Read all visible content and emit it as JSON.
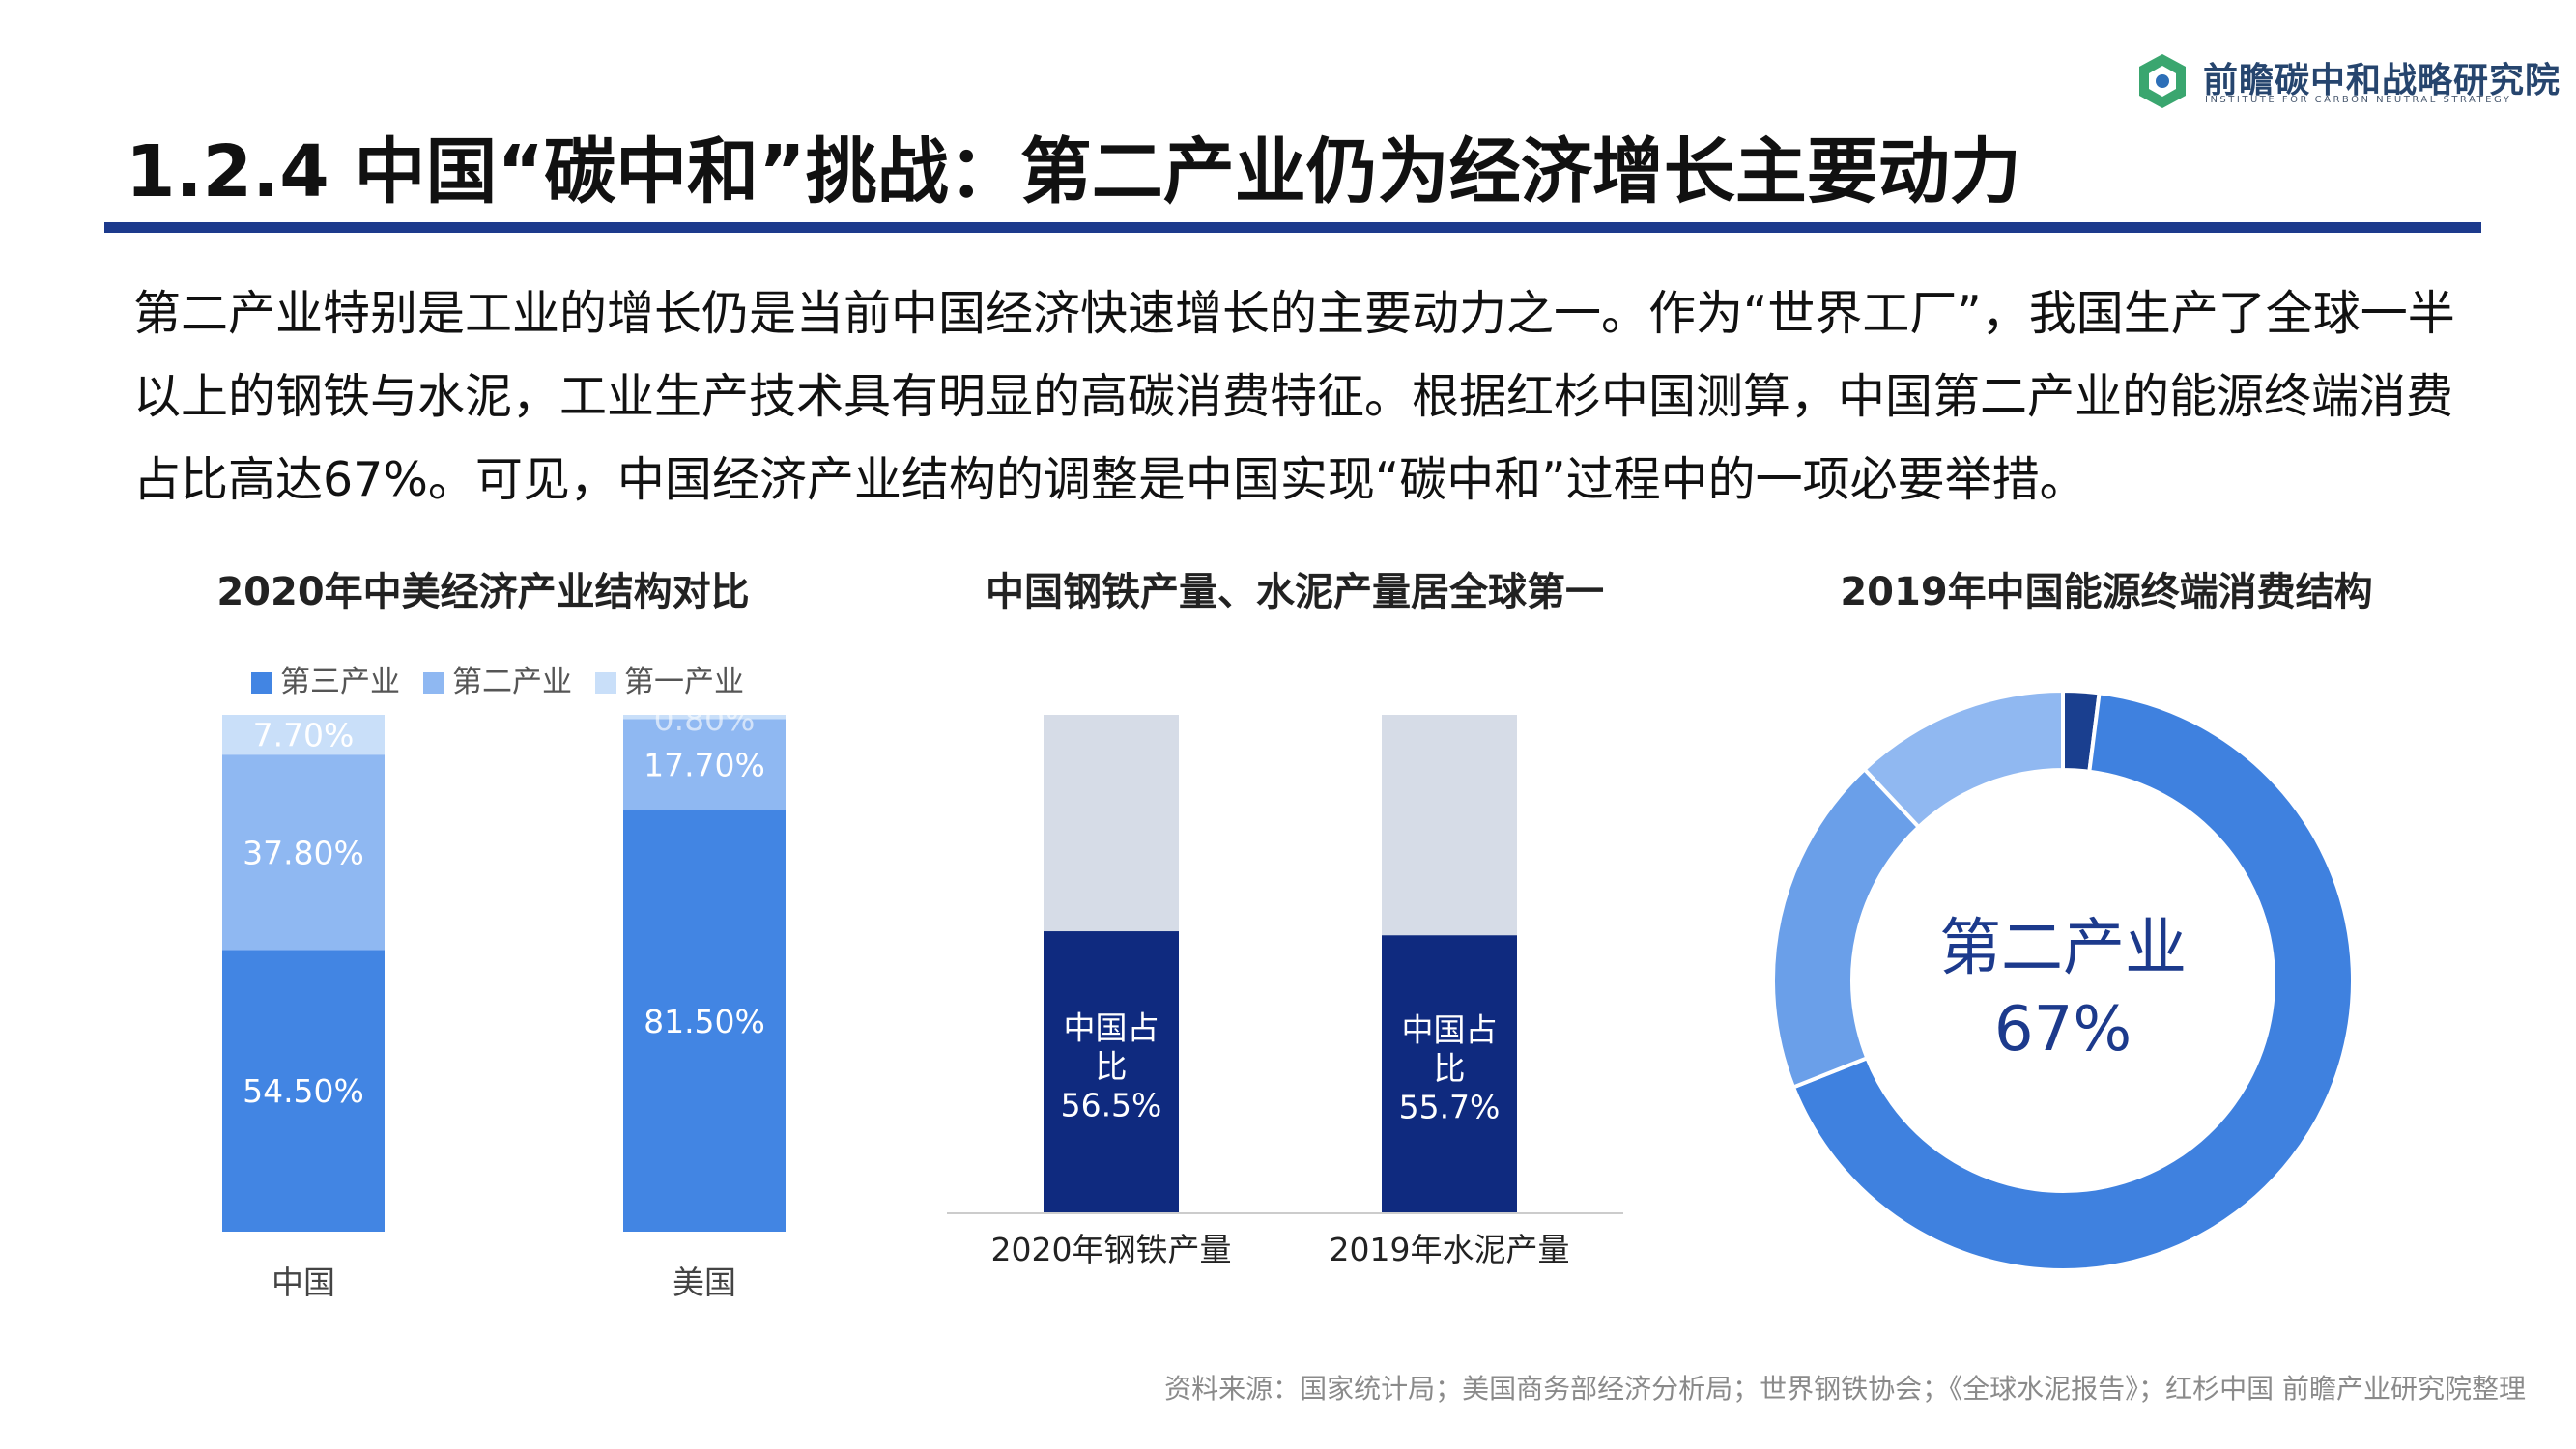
{
  "header": {
    "logo_cn": "前瞻碳中和战略研究院",
    "logo_en": "INSTITUTE FOR CARBON NEUTRAL STRATEGY",
    "title": "1.2.4 中国“碳中和”挑战：第二产业仍为经济增长主要动力"
  },
  "intro_text": "第二产业特别是工业的增长仍是当前中国经济快速增长的主要动力之一。作为“世界工厂”，我国生产了全球一半以上的钢铁与水泥，工业生产技术具有明显的高碳消费特征。根据红杉中国测算，中国第二产业的能源终端消费占比高达67%。可见，中国经济产业结构的调整是中国实现“碳中和”过程中的一项必要举措。",
  "chart_data": [
    {
      "type": "bar",
      "stacked": true,
      "title": "2020年中美经济产业结构对比",
      "categories": [
        "中国",
        "美国"
      ],
      "series": [
        {
          "name": "第三产业",
          "values": [
            54.5,
            81.5
          ],
          "labels": [
            "54.50%",
            "81.50%"
          ],
          "color": "#4285e3"
        },
        {
          "name": "第二产业",
          "values": [
            37.8,
            17.7
          ],
          "labels": [
            "37.80%",
            "17.70%"
          ],
          "color": "#8fb8f2"
        },
        {
          "name": "第一产业",
          "values": [
            7.7,
            0.8
          ],
          "labels": [
            "7.70%",
            "0.80%"
          ],
          "color": "#c9dff9"
        }
      ],
      "legend_position": "top",
      "ylim": [
        0,
        100
      ]
    },
    {
      "type": "bar",
      "stacked": true,
      "title": "中国钢铁产量、水泥产量居全球第一",
      "categories": [
        "2020年钢铁产量",
        "2019年水泥产量"
      ],
      "series": [
        {
          "values": [
            56.5,
            55.7
          ],
          "labels": [
            "中国占比\n56.5%",
            "中国占比\n55.7%"
          ],
          "color": "#0f2a7f"
        },
        {
          "values": [
            43.5,
            44.3
          ],
          "color": "#d6dce7"
        }
      ],
      "ylim": [
        0,
        100
      ]
    },
    {
      "type": "pie",
      "donut": true,
      "title": "2019年中国能源终端消费结构",
      "center_label": "第二产业",
      "center_value": "67%",
      "values": [
        2,
        67,
        19,
        12
      ],
      "highlight": "第二产业",
      "colors": [
        "#1a3f8f",
        "#3f81df",
        "#6a9fe9",
        "#90b8f1"
      ]
    }
  ],
  "footer": {
    "source": "资料来源：国家统计局；美国商务部经济分析局；世界钢铁协会；《全球水泥报告》；红杉中国  前瞻产业研究院整理"
  }
}
